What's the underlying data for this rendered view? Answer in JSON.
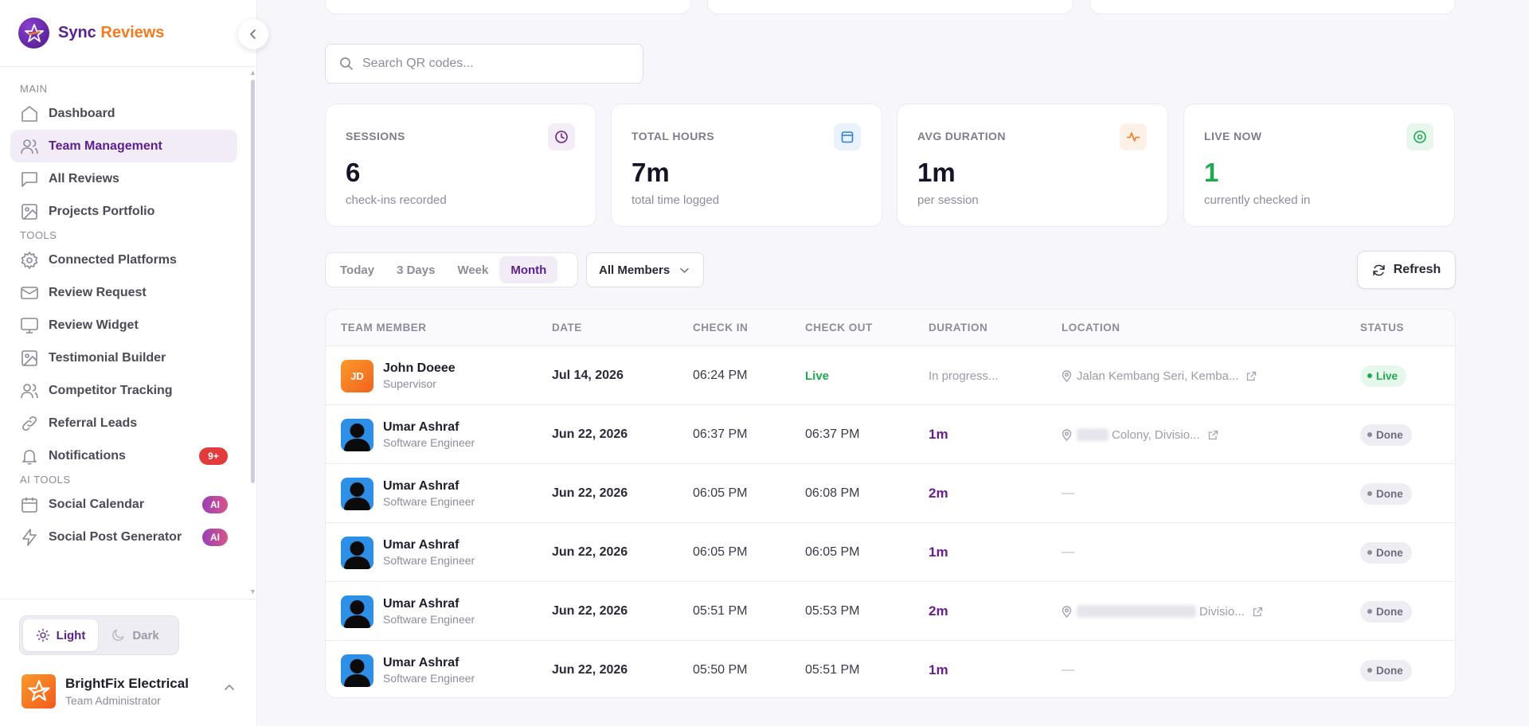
{
  "brand": {
    "name_part1": "Sync",
    "name_part2": "Reviews"
  },
  "nav": {
    "sections": [
      {
        "label": "MAIN",
        "items": [
          {
            "label": "Dashboard",
            "icon": "home-icon"
          },
          {
            "label": "Team Management",
            "icon": "users-icon",
            "active": true
          },
          {
            "label": "All Reviews",
            "icon": "message-icon"
          },
          {
            "label": "Projects Portfolio",
            "icon": "image-icon"
          }
        ]
      },
      {
        "label": "TOOLS",
        "items": [
          {
            "label": "Connected Platforms",
            "icon": "gear-icon"
          },
          {
            "label": "Review Request",
            "icon": "mail-icon"
          },
          {
            "label": "Review Widget",
            "icon": "monitor-icon"
          },
          {
            "label": "Testimonial Builder",
            "icon": "image-icon"
          },
          {
            "label": "Competitor Tracking",
            "icon": "users-icon"
          },
          {
            "label": "Referral Leads",
            "icon": "link-icon"
          },
          {
            "label": "Notifications",
            "icon": "bell-icon",
            "badge": "9+"
          }
        ]
      },
      {
        "label": "AI TOOLS",
        "items": [
          {
            "label": "Social Calendar",
            "icon": "calendar-icon",
            "badge": "AI"
          },
          {
            "label": "Social Post Generator",
            "icon": "bolt-icon",
            "badge": "AI"
          }
        ]
      }
    ]
  },
  "theme": {
    "light_label": "Light",
    "dark_label": "Dark",
    "selected": "light"
  },
  "profile": {
    "name": "BrightFix Electrical",
    "role": "Team Administrator"
  },
  "search": {
    "placeholder": "Search QR codes...",
    "value": ""
  },
  "stats": [
    {
      "label": "SESSIONS",
      "value": "6",
      "sub": "check-ins recorded",
      "icon": "clock-icon",
      "color": "#6b1f8f",
      "bg": "#f3edf8"
    },
    {
      "label": "TOTAL HOURS",
      "value": "7m",
      "sub": "total time logged",
      "icon": "calendar-icon",
      "color": "#2f7fe0",
      "bg": "#eaf3fd"
    },
    {
      "label": "AVG DURATION",
      "value": "1m",
      "sub": "per session",
      "icon": "activity-icon",
      "color": "#f47b20",
      "bg": "#fdf1e7"
    },
    {
      "label": "LIVE NOW",
      "value": "1",
      "sub": "currently checked in",
      "icon": "target-icon",
      "color": "#1fa84f",
      "bg": "#e8f7ee",
      "value_color": "#1fa84f"
    }
  ],
  "filters": {
    "periods": [
      "Today",
      "3 Days",
      "Week",
      "Month"
    ],
    "selected_period": "Month",
    "member_select": "All Members",
    "refresh_label": "Refresh"
  },
  "table": {
    "columns": [
      "TEAM MEMBER",
      "DATE",
      "CHECK IN",
      "CHECK OUT",
      "DURATION",
      "LOCATION",
      "STATUS"
    ],
    "rows": [
      {
        "name": "John Doeee",
        "role": "Supervisor",
        "avatar": "initials",
        "initials": "JD",
        "date": "Jul 14, 2026",
        "check_in": "06:24 PM",
        "check_out": "Live",
        "duration": "In progress...",
        "location": "Jalan Kembang Seri, Kemba...",
        "status": "Live"
      },
      {
        "name": "Umar Ashraf",
        "role": "Software Engineer",
        "avatar": "photo",
        "date": "Jun 22, 2026",
        "check_in": "06:37 PM",
        "check_out": "06:37 PM",
        "duration": "1m",
        "location": "Colony, Divisio...",
        "status": "Done"
      },
      {
        "name": "Umar Ashraf",
        "role": "Software Engineer",
        "avatar": "photo",
        "date": "Jun 22, 2026",
        "check_in": "06:05 PM",
        "check_out": "06:08 PM",
        "duration": "2m",
        "location": "—",
        "status": "Done"
      },
      {
        "name": "Umar Ashraf",
        "role": "Software Engineer",
        "avatar": "photo",
        "date": "Jun 22, 2026",
        "check_in": "06:05 PM",
        "check_out": "06:05 PM",
        "duration": "1m",
        "location": "—",
        "status": "Done"
      },
      {
        "name": "Umar Ashraf",
        "role": "Software Engineer",
        "avatar": "photo",
        "date": "Jun 22, 2026",
        "check_in": "05:51 PM",
        "check_out": "05:53 PM",
        "duration": "2m",
        "location": "Divisio...",
        "status": "Done"
      },
      {
        "name": "Umar Ashraf",
        "role": "Software Engineer",
        "avatar": "photo",
        "date": "Jun 22, 2026",
        "check_in": "05:50 PM",
        "check_out": "05:51 PM",
        "duration": "1m",
        "location": "—",
        "status": "Done"
      }
    ]
  }
}
